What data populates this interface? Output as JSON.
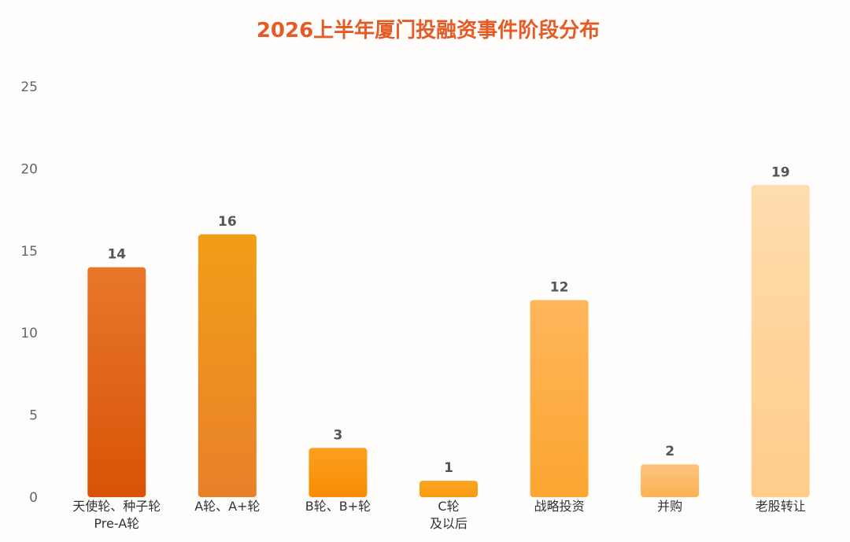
{
  "chart_data": {
    "type": "bar",
    "title": "2026上半年厦门投融资事件阶段分布",
    "categories": [
      [
        "天使轮、种子轮",
        "Pre-A轮"
      ],
      [
        "A轮、A+轮"
      ],
      [
        "B轮、B+轮"
      ],
      [
        "C轮",
        "及以后"
      ],
      [
        "战略投资"
      ],
      [
        "并购"
      ],
      [
        "老股转让"
      ]
    ],
    "values": [
      14,
      16,
      3,
      1,
      12,
      2,
      19
    ],
    "ylim": [
      0,
      25
    ],
    "yticks": [
      0,
      5,
      10,
      15,
      20,
      25
    ],
    "grid": false,
    "data_labels": true,
    "bar_colors": [
      [
        "#e8772a",
        "#d85307"
      ],
      [
        "#f29e18",
        "#e8802a"
      ],
      [
        "#f9a01e",
        "#f88c03"
      ],
      [
        "#fba525",
        "#f99a10"
      ],
      [
        "#feb65a",
        "#fca632"
      ],
      [
        "#fcc37f",
        "#fcb254"
      ],
      [
        "#ffdcae",
        "#ffcd8a"
      ]
    ],
    "title_color": "#e55b25"
  }
}
